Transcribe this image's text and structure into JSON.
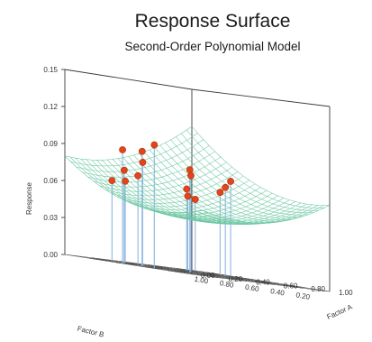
{
  "chart_data": {
    "type": "surface",
    "title": "Response Surface",
    "subtitle": "Second-Order Polynomial Model",
    "zlabel": "Response",
    "xlabel": "Factor B",
    "ylabel": "Factor A",
    "z_ticks": [
      "0.00",
      "0.03",
      "0.06",
      "0.09",
      "0.12",
      "0.15"
    ],
    "x_ticks": [
      "0.20",
      "0.40",
      "0.60",
      "0.80",
      "1.00"
    ],
    "y_ticks": [
      "0.00",
      "0.20",
      "0.40",
      "0.60",
      "0.80",
      "1.00"
    ],
    "zlim": [
      0,
      0.15
    ],
    "xlim": [
      0,
      1
    ],
    "ylim": [
      0,
      1
    ],
    "surface_model": "z = 0.12 - 0.12*A - 0.09*B + 0.07*A^2 + 0.05*B^2 + 0.02*A*B",
    "grid": true,
    "colors": {
      "surface": "#6cc7a3",
      "points": "#e0451b",
      "stems": "#8fb6e0"
    },
    "points": [
      {
        "a": 0.05,
        "b": 0.35,
        "z": 0.1
      },
      {
        "a": 0.1,
        "b": 0.5,
        "z": 0.093
      },
      {
        "a": 0.05,
        "b": 0.6,
        "z": 0.092
      },
      {
        "a": 0.15,
        "b": 0.55,
        "z": 0.084
      },
      {
        "a": 0.2,
        "b": 0.75,
        "z": 0.075
      },
      {
        "a": 0.3,
        "b": 0.75,
        "z": 0.072
      },
      {
        "a": 0.3,
        "b": 0.85,
        "z": 0.066
      },
      {
        "a": 0.25,
        "b": 0.9,
        "z": 0.065
      },
      {
        "a": 0.4,
        "b": 0.45,
        "z": 0.083
      },
      {
        "a": 0.5,
        "b": 0.55,
        "z": 0.078
      },
      {
        "a": 0.65,
        "b": 0.4,
        "z": 0.078
      },
      {
        "a": 0.75,
        "b": 0.55,
        "z": 0.072
      },
      {
        "a": 0.7,
        "b": 0.8,
        "z": 0.066
      },
      {
        "a": 0.85,
        "b": 0.7,
        "z": 0.067
      },
      {
        "a": 0.8,
        "b": 0.9,
        "z": 0.06
      },
      {
        "a": 0.9,
        "b": 0.95,
        "z": 0.058
      }
    ]
  }
}
